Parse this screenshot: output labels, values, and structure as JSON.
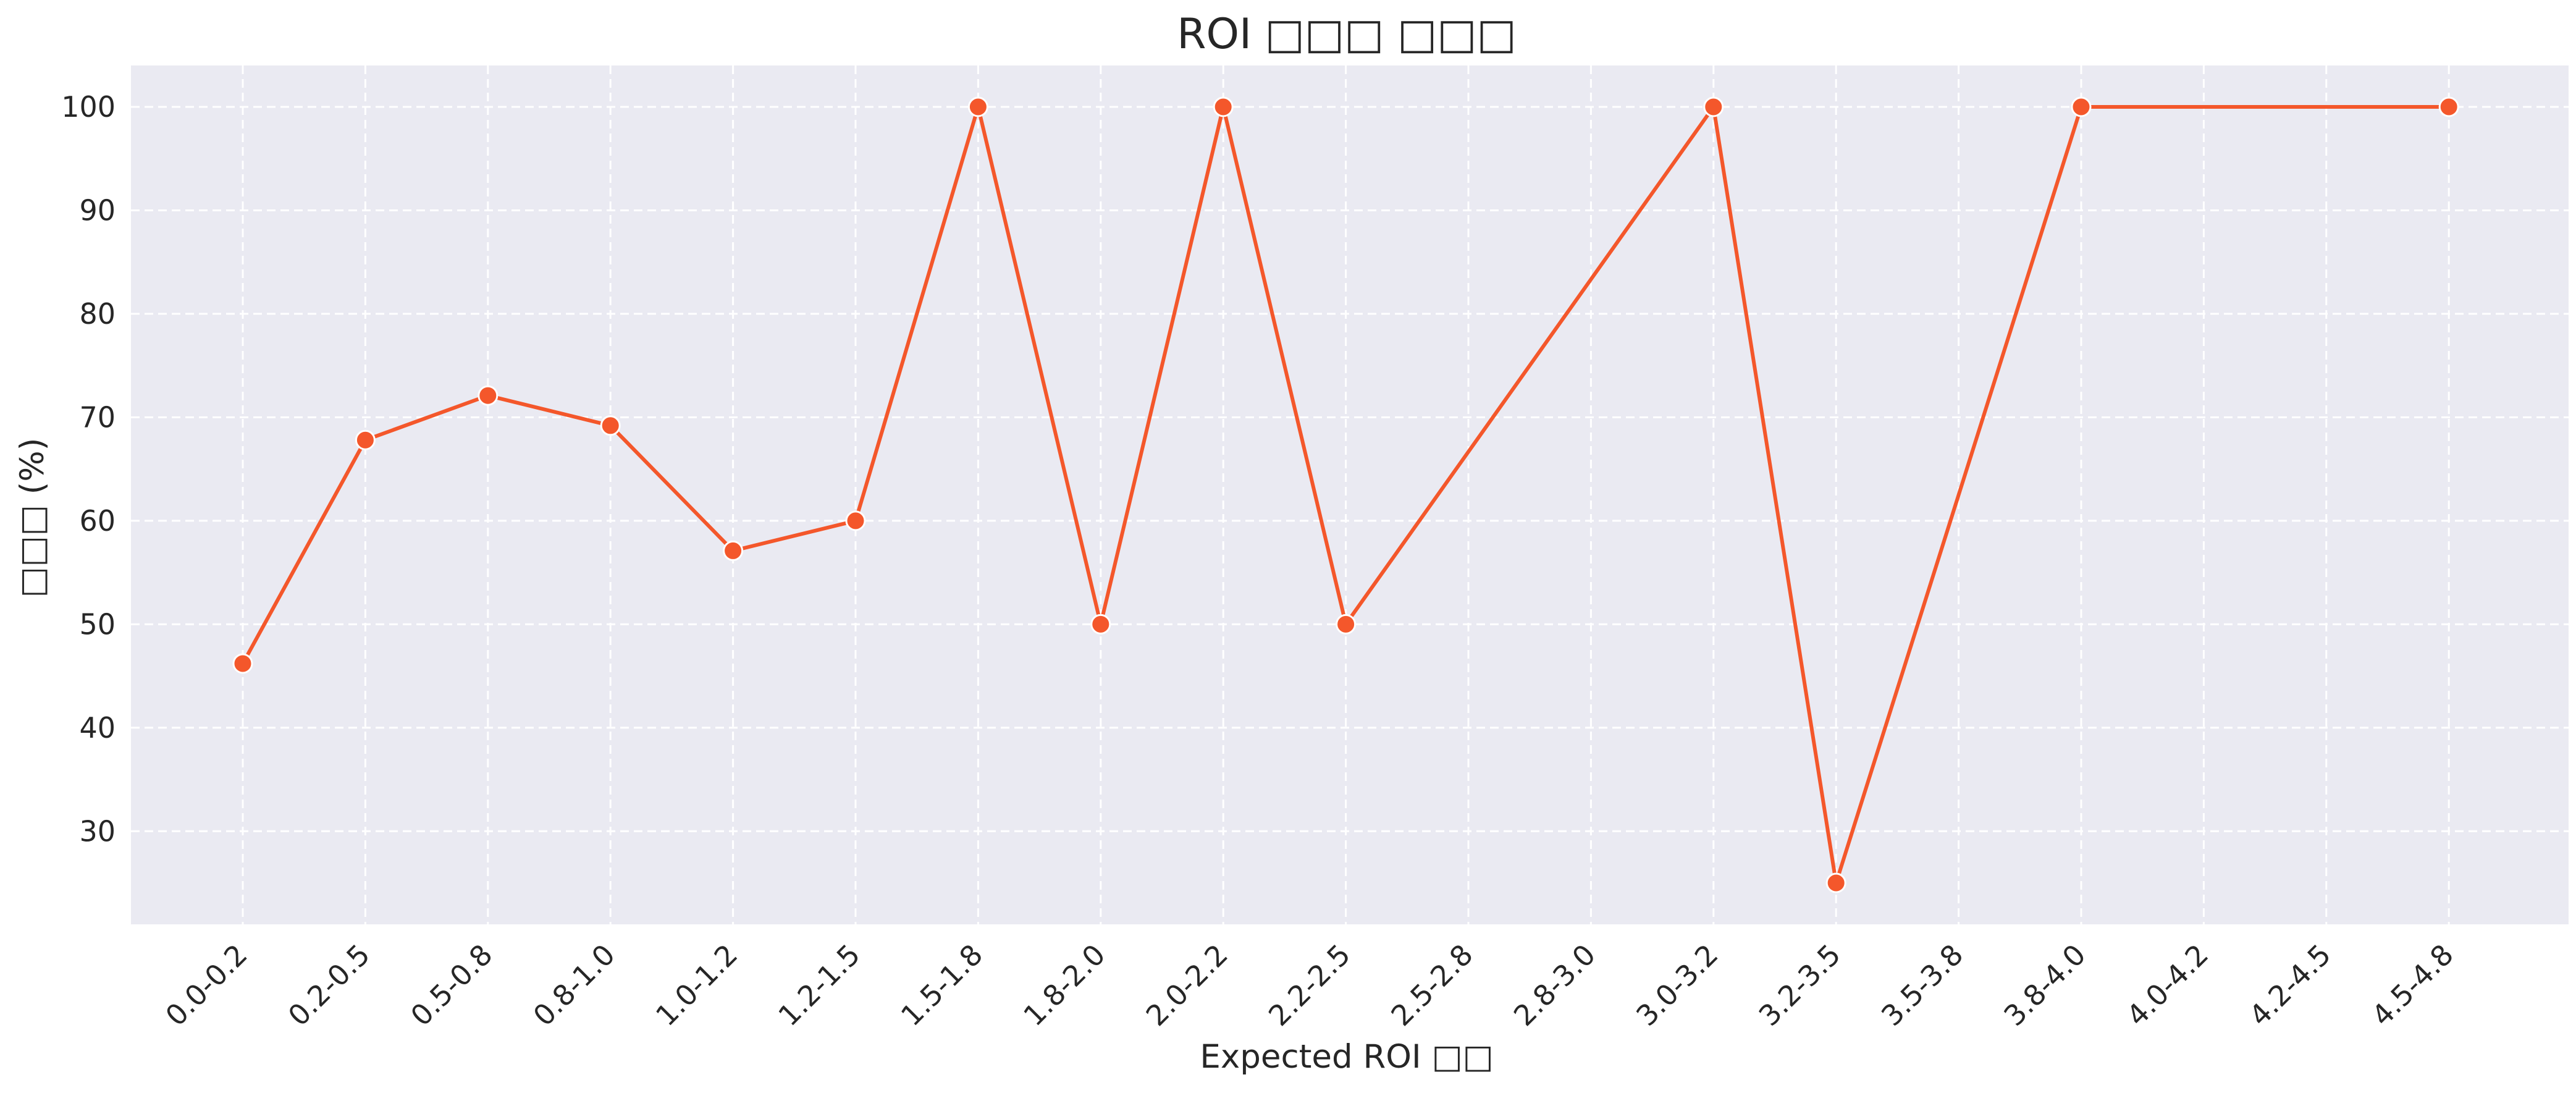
{
  "chart_data": {
    "type": "line",
    "title": "ROI □□□ □□□",
    "xlabel": "Expected ROI □□",
    "ylabel": "□□□ (%)",
    "categories": [
      "0.0-0.2",
      "0.2-0.5",
      "0.5-0.8",
      "0.8-1.0",
      "1.0-1.2",
      "1.2-1.5",
      "1.5-1.8",
      "1.8-2.0",
      "2.0-2.2",
      "2.2-2.5",
      "2.5-2.8",
      "2.8-3.0",
      "3.0-3.2",
      "3.2-3.5",
      "3.5-3.8",
      "3.8-4.0",
      "4.0-4.2",
      "4.2-4.5",
      "4.5-4.8"
    ],
    "series": [
      {
        "values": [
          46.2,
          67.8,
          72.1,
          69.2,
          57.1,
          60.0,
          100,
          50,
          100,
          50,
          null,
          null,
          100,
          25,
          null,
          100,
          null,
          null,
          100
        ],
        "color": "#f4572b"
      }
    ],
    "yticks": [
      30,
      40,
      50,
      60,
      70,
      80,
      90,
      100
    ],
    "ylim": [
      21,
      104
    ],
    "grid": true,
    "background": "#eaeaf2",
    "grid_color": "#ffffff",
    "grid_style": "dashed",
    "line_color": "#f4572b",
    "marker_edge_color": "#ffffff"
  }
}
